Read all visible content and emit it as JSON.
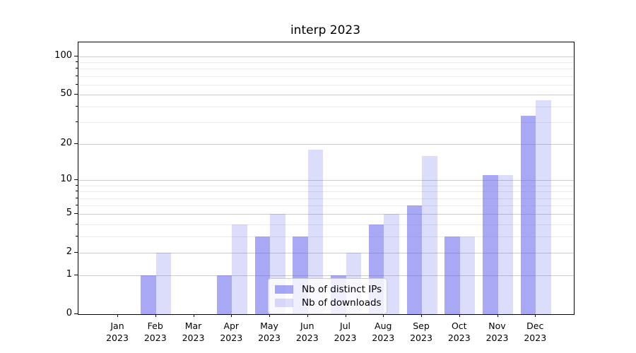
{
  "chart_data": {
    "type": "bar",
    "title": "interp 2023",
    "categories": [
      "Jan",
      "Feb",
      "Mar",
      "Apr",
      "May",
      "Jun",
      "Jul",
      "Aug",
      "Sep",
      "Oct",
      "Nov",
      "Dec"
    ],
    "year": "2023",
    "series": [
      {
        "name": "Nb of distinct IPs",
        "color": "rgba(97,97,237,0.55)",
        "values": [
          0,
          1,
          0,
          1,
          3,
          3,
          1,
          4,
          6,
          3,
          11,
          34
        ]
      },
      {
        "name": "Nb of downloads",
        "color": "rgba(97,97,237,0.22)",
        "values": [
          0,
          2,
          0,
          4,
          5,
          18,
          2,
          5,
          16,
          3,
          11,
          45
        ]
      }
    ],
    "y_axis": {
      "scale": "log1p",
      "ticks": [
        0,
        1,
        2,
        5,
        10,
        20,
        50,
        100
      ],
      "minor_ticks": [
        3,
        4,
        6,
        7,
        8,
        9,
        30,
        40,
        60,
        70,
        80,
        90
      ],
      "max": 129
    },
    "x_axis": {
      "tick_label_format": "month-over-year"
    },
    "legend": {
      "position": "lower-center-inside"
    },
    "grid": true,
    "colors": {
      "grid_major": "#cccccc",
      "grid_minor": "#ebebeb",
      "spine": "#000000"
    }
  }
}
